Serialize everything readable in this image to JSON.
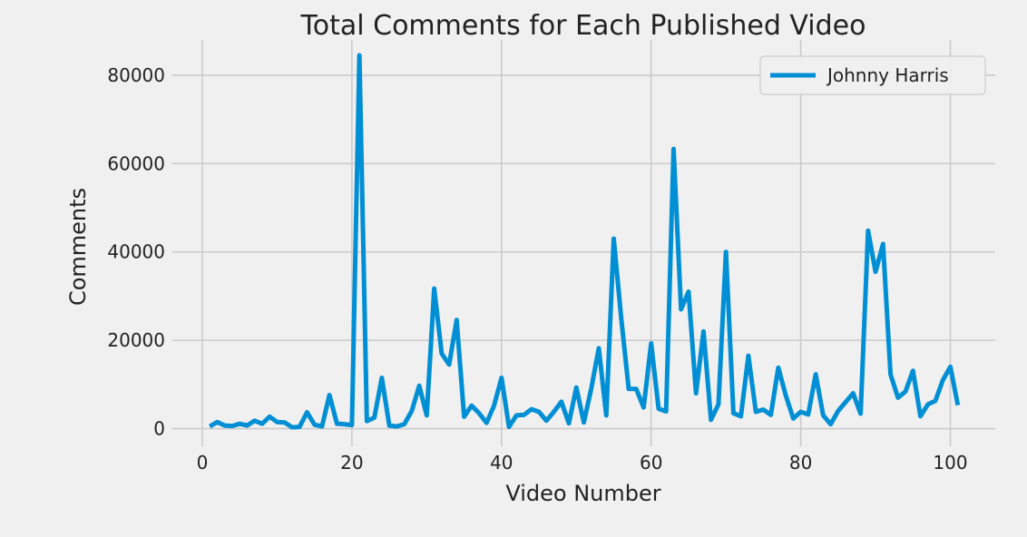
{
  "chart_data": {
    "type": "line",
    "title": "Total Comments for Each Published Video",
    "xlabel": "Video Number",
    "ylabel": "Comments",
    "xlim": [
      -4.0,
      106.0
    ],
    "ylim": [
      -4000,
      88000
    ],
    "xticks": [
      0,
      20,
      40,
      60,
      80,
      100
    ],
    "yticks": [
      0,
      20000,
      40000,
      60000,
      80000
    ],
    "grid": true,
    "legend": "top-right",
    "series": [
      {
        "name": "Johnny Harris",
        "color": "#008fd5",
        "x": [
          1,
          2,
          3,
          4,
          5,
          6,
          7,
          8,
          9,
          10,
          11,
          12,
          13,
          14,
          15,
          16,
          17,
          18,
          19,
          20,
          21,
          22,
          23,
          24,
          25,
          26,
          27,
          28,
          29,
          30,
          31,
          32,
          33,
          34,
          35,
          36,
          37,
          38,
          39,
          40,
          41,
          42,
          43,
          44,
          45,
          46,
          47,
          48,
          49,
          50,
          51,
          52,
          53,
          54,
          55,
          56,
          57,
          58,
          59,
          60,
          61,
          62,
          63,
          64,
          65,
          66,
          67,
          68,
          69,
          70,
          71,
          72,
          73,
          74,
          75,
          76,
          77,
          78,
          79,
          80,
          81,
          82,
          83,
          84,
          85,
          86,
          87,
          88,
          89,
          90,
          91,
          92,
          93,
          94,
          95,
          96,
          97,
          98,
          99,
          100,
          101
        ],
        "values": [
          500,
          1500,
          700,
          600,
          1100,
          700,
          1800,
          1100,
          2700,
          1500,
          1400,
          300,
          400,
          3700,
          900,
          500,
          7600,
          1100,
          1000,
          800,
          84500,
          1700,
          2500,
          11500,
          700,
          500,
          1000,
          4000,
          9700,
          3000,
          31700,
          17000,
          14500,
          24600,
          2700,
          5200,
          3500,
          1300,
          5200,
          11500,
          400,
          3000,
          3100,
          4400,
          3800,
          1800,
          3800,
          6100,
          1200,
          9300,
          1400,
          9100,
          18200,
          3000,
          43000,
          25000,
          9000,
          9000,
          4800,
          19300,
          4500,
          3900,
          63300,
          27000,
          31000,
          8000,
          22000,
          2000,
          5500,
          40000,
          3500,
          2800,
          16500,
          3800,
          4300,
          3100,
          13800,
          7500,
          2300,
          3800,
          3200,
          12300,
          3000,
          1000,
          4000,
          6000,
          8000,
          3400,
          44800,
          35500,
          41800,
          12300,
          7000,
          8400,
          13100,
          2800,
          5500,
          6300,
          11000,
          14000,
          5300
        ]
      }
    ]
  }
}
